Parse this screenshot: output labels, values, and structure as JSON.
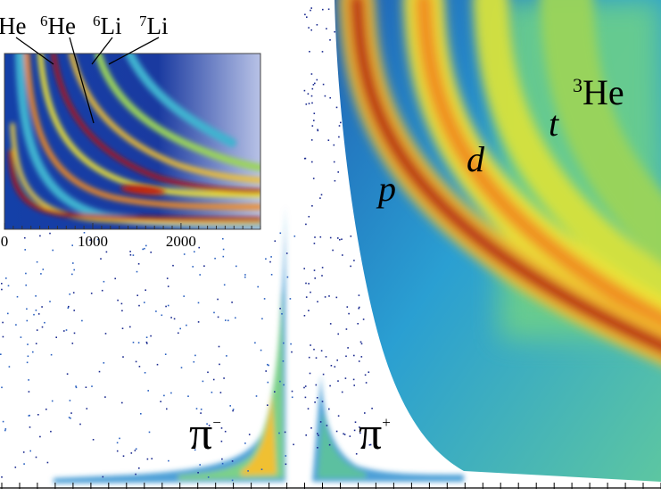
{
  "chart_data": {
    "type": "heatmap",
    "description_units": "2D particle identification histogram (energy loss vs momentum)",
    "main_panel": {
      "particle_labels": [
        {
          "id": "pi-minus",
          "base": "π",
          "sup": "−"
        },
        {
          "id": "pi-plus",
          "base": "π",
          "sup": "+"
        },
        {
          "id": "proton",
          "base": "p",
          "sup": ""
        },
        {
          "id": "deuteron",
          "base": "d",
          "sup": ""
        },
        {
          "id": "triton",
          "base": "t",
          "sup": ""
        },
        {
          "id": "helium3",
          "base": "He",
          "sup": "3"
        }
      ],
      "x_tick_count": 38
    },
    "inset_panel": {
      "x_tick_labels": [
        "0",
        "1000",
        "2000"
      ],
      "x_ticks": [
        0,
        1000,
        2000
      ],
      "xlim": [
        0,
        2900
      ],
      "isotope_labels": [
        {
          "id": "he",
          "base": "He",
          "sup": ""
        },
        {
          "id": "he6",
          "base": "He",
          "sup": "6"
        },
        {
          "id": "li6",
          "base": "Li",
          "sup": "6"
        },
        {
          "id": "li7",
          "base": "Li",
          "sup": "7"
        }
      ]
    },
    "colors": {
      "background_low": "#0b1a8c",
      "mid": "#2aa6d8",
      "high_green": "#9bd45a",
      "yellow": "#f0e436",
      "orange": "#f08a24",
      "peak": "#a3110d"
    }
  }
}
